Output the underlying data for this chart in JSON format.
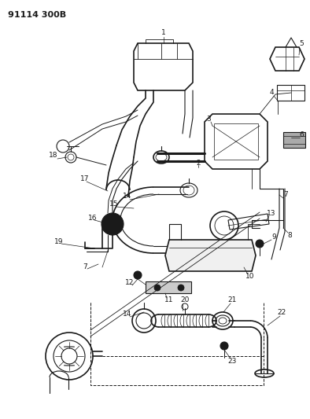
{
  "title": "91114 300B",
  "bg_color": "#ffffff",
  "line_color": "#1a1a1a",
  "figsize": [
    3.94,
    5.33
  ],
  "dpi": 100
}
